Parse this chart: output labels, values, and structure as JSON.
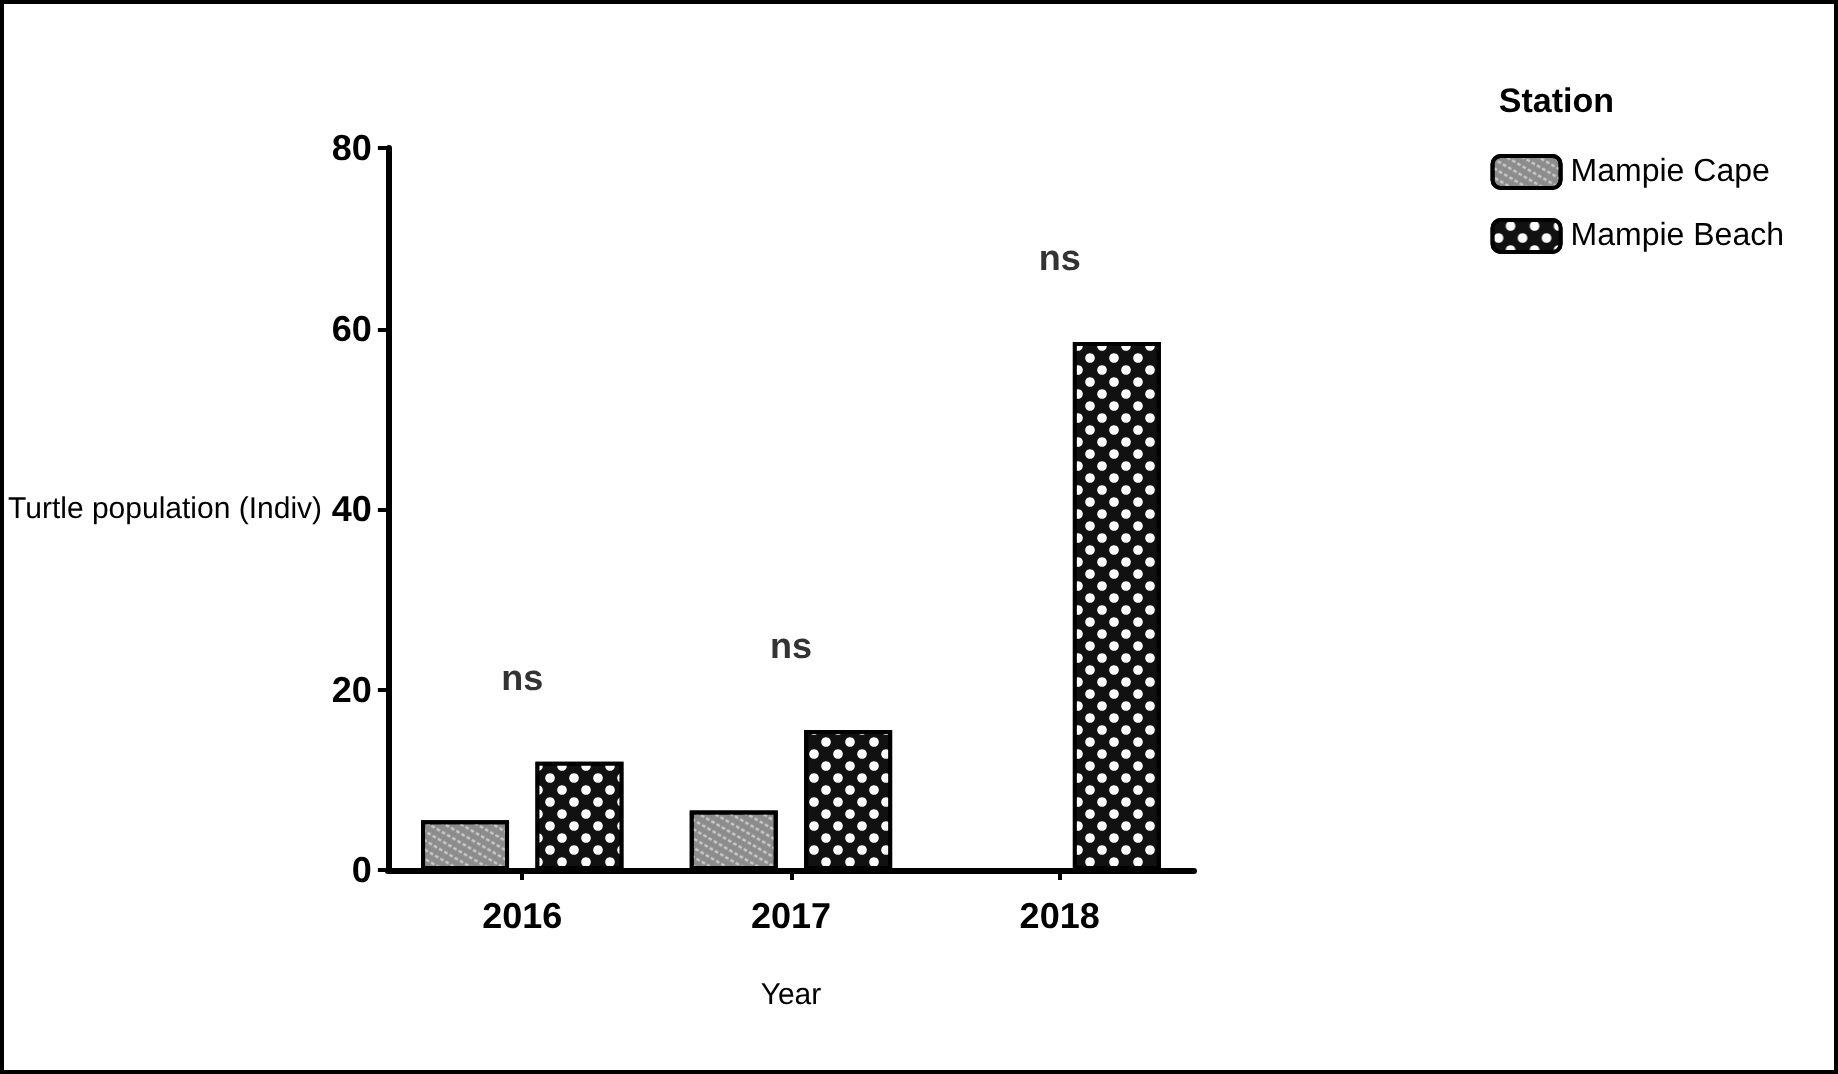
{
  "chart_data": {
    "type": "bar",
    "xlabel": "Year",
    "ylabel": "Turtle population (Indiv)",
    "legend_title": "Station",
    "categories": [
      "2016",
      "2017",
      "2018"
    ],
    "series": [
      {
        "name": "Mampie Cape",
        "color": "#8c8c8c",
        "values": [
          5.5,
          6.6,
          null
        ]
      },
      {
        "name": "Mampie Beach",
        "color": "#111111",
        "values": [
          12,
          15.5,
          58.5
        ]
      }
    ],
    "ylim": [
      0,
      80
    ],
    "yticks": [
      0,
      20,
      40,
      60,
      80
    ],
    "grid": false,
    "legend": "top right",
    "annotations": [
      "ns",
      "ns",
      "ns"
    ]
  }
}
